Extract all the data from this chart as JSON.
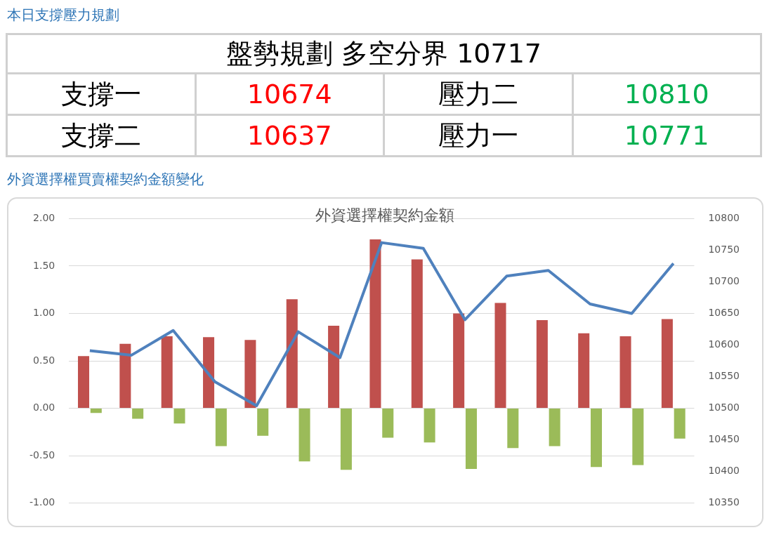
{
  "chart_data": [
    {
      "type": "other",
      "title": "本日支撐壓力規劃",
      "subtitle": "盤勢規劃 多空分界 10717",
      "annotations": [
        "支撐一",
        "10674",
        "壓力二",
        "10810",
        "支撐二",
        "10637",
        "壓力一",
        "10771"
      ]
    },
    {
      "type": "bar",
      "title": "外資選擇權買賣權契約金額變化",
      "subtitle": "外資選擇權契約金額",
      "categories": [
        null,
        null,
        null,
        null,
        null,
        null,
        null,
        null,
        null,
        null,
        null,
        null,
        null,
        null,
        null
      ],
      "series": [
        {
          "type": "bar",
          "color": "#c0504d",
          "values": [
            0.55,
            0.68,
            0.76,
            0.75,
            0.72,
            1.15,
            0.87,
            1.78,
            1.57,
            1.0,
            1.11,
            0.93,
            0.79,
            0.76,
            0.94
          ]
        },
        {
          "type": "bar",
          "color": "#9bbb59",
          "values": [
            -0.05,
            -0.11,
            -0.16,
            -0.4,
            -0.29,
            -0.56,
            -0.65,
            -0.31,
            -0.36,
            -0.64,
            -0.42,
            -0.4,
            -0.62,
            -0.6,
            -0.32
          ]
        },
        {
          "type": "line",
          "axis": "y2",
          "color": "#4f81bd",
          "values": [
            10591,
            10584,
            10623,
            10542,
            10504,
            10621,
            10580,
            10762,
            10753,
            10640,
            10709,
            10718,
            10665,
            10650,
            10729
          ]
        }
      ],
      "ylim": [
        -1,
        2
      ],
      "yticks": [
        {
          "value": -1,
          "label": "-1.00"
        },
        {
          "value": -0.5,
          "label": "-0.50"
        },
        {
          "value": 0,
          "label": "0.00"
        },
        {
          "value": 0.5,
          "label": "0.50"
        },
        {
          "value": 1,
          "label": "1.00"
        },
        {
          "value": 1.5,
          "label": "1.50"
        },
        {
          "value": 2,
          "label": "2.00"
        }
      ],
      "y2lim": [
        10350,
        10800
      ],
      "y2ticks": [
        10350,
        10400,
        10450,
        10500,
        10550,
        10600,
        10650,
        10700,
        10750,
        10800
      ],
      "grid": "y",
      "legend": false,
      "marker": "none"
    }
  ]
}
